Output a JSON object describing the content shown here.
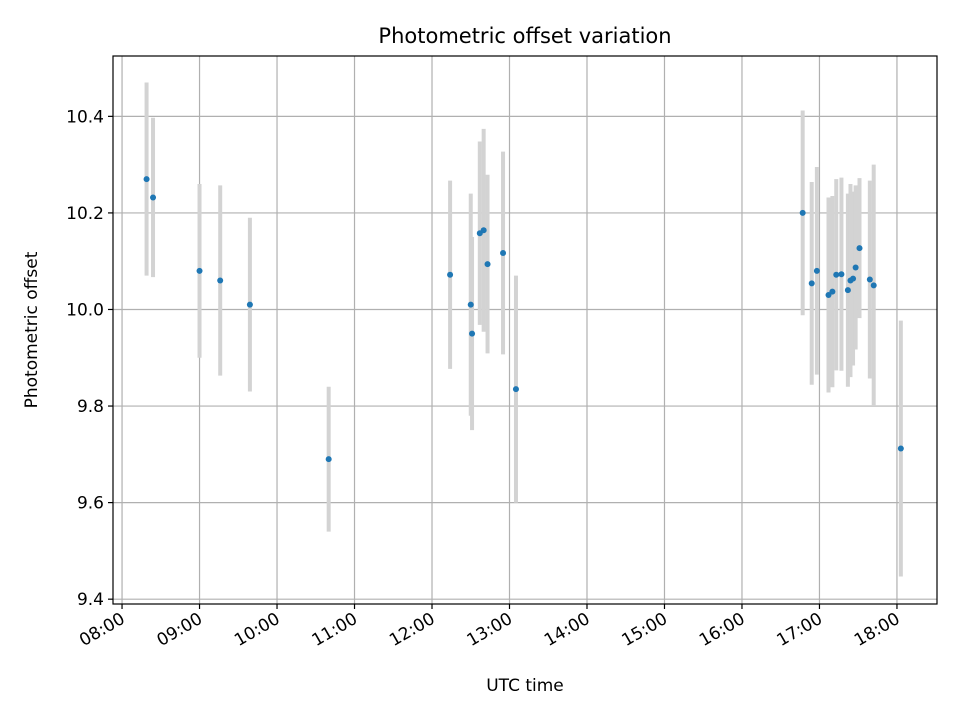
{
  "chart_data": {
    "type": "scatter",
    "title": "Photometric offset variation",
    "xlabel": "UTC time",
    "ylabel": "Photometric offset",
    "x_ticks": [
      "08:00",
      "09:00",
      "10:00",
      "11:00",
      "12:00",
      "13:00",
      "14:00",
      "15:00",
      "16:00",
      "17:00",
      "18:00"
    ],
    "y_ticks": [
      "9.4",
      "9.6",
      "9.8",
      "10.0",
      "10.2",
      "10.4"
    ],
    "xlim": [
      "07:53",
      "18:31"
    ],
    "ylim": [
      9.39,
      10.525
    ],
    "grid": true,
    "colors": {
      "marker": "#1f77b4",
      "errorbar": "#d3d3d3",
      "grid": "#b0b0b0"
    },
    "points": [
      {
        "x": "08:19",
        "y": 10.27,
        "err": 0.2
      },
      {
        "x": "08:24",
        "y": 10.232,
        "err": 0.165
      },
      {
        "x": "09:00",
        "y": 10.08,
        "err": 0.18
      },
      {
        "x": "09:16",
        "y": 10.06,
        "err": 0.197
      },
      {
        "x": "09:39",
        "y": 10.01,
        "err": 0.18
      },
      {
        "x": "10:40",
        "y": 9.69,
        "err": 0.15
      },
      {
        "x": "12:14",
        "y": 10.072,
        "err": 0.195
      },
      {
        "x": "12:30",
        "y": 10.01,
        "err": 0.23
      },
      {
        "x": "12:31",
        "y": 9.95,
        "err": 0.2
      },
      {
        "x": "12:37",
        "y": 10.158,
        "err": 0.19
      },
      {
        "x": "12:40",
        "y": 10.164,
        "err": 0.21
      },
      {
        "x": "12:43",
        "y": 10.094,
        "err": 0.185
      },
      {
        "x": "12:55",
        "y": 10.117,
        "err": 0.21
      },
      {
        "x": "13:05",
        "y": 9.835,
        "err": 0.235
      },
      {
        "x": "16:47",
        "y": 10.2,
        "err": 0.212
      },
      {
        "x": "16:54",
        "y": 10.054,
        "err": 0.21
      },
      {
        "x": "16:58",
        "y": 10.08,
        "err": 0.215
      },
      {
        "x": "17:07",
        "y": 10.03,
        "err": 0.202
      },
      {
        "x": "17:10",
        "y": 10.037,
        "err": 0.198
      },
      {
        "x": "17:13",
        "y": 10.072,
        "err": 0.198
      },
      {
        "x": "17:17",
        "y": 10.073,
        "err": 0.2
      },
      {
        "x": "17:22",
        "y": 10.04,
        "err": 0.2
      },
      {
        "x": "17:24",
        "y": 10.06,
        "err": 0.2
      },
      {
        "x": "17:26",
        "y": 10.064,
        "err": 0.18
      },
      {
        "x": "17:28",
        "y": 10.087,
        "err": 0.17
      },
      {
        "x": "17:31",
        "y": 10.127,
        "err": 0.145
      },
      {
        "x": "17:39",
        "y": 10.062,
        "err": 0.205
      },
      {
        "x": "17:42",
        "y": 10.05,
        "err": 0.25
      },
      {
        "x": "18:03",
        "y": 9.712,
        "err": 0.265
      }
    ]
  }
}
